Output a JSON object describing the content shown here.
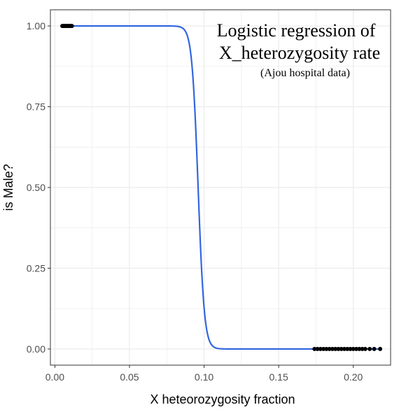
{
  "chart_data": {
    "type": "scatter",
    "title_line1": "Logistic regression of",
    "title_line2": "X_heterozygosity rate",
    "subtitle": "(Ajou hospital data)",
    "xlabel": "X heteorozygosity fraction",
    "ylabel": "is Male?",
    "xlim": [
      -0.003,
      0.225
    ],
    "ylim": [
      -0.05,
      1.05
    ],
    "x_ticks": [
      0.0,
      0.05,
      0.1,
      0.15,
      0.2
    ],
    "x_tick_labels": [
      "0.00",
      "0.05",
      "0.10",
      "0.15",
      "0.20"
    ],
    "y_ticks": [
      0.0,
      0.25,
      0.5,
      0.75,
      1.0
    ],
    "y_tick_labels": [
      "0.00",
      "0.25",
      "0.50",
      "0.75",
      "1.00"
    ],
    "grid": true,
    "panel_border": true,
    "logistic_curve": {
      "midpoint": 0.096,
      "slope": 480,
      "x_range": [
        0.005,
        0.218
      ],
      "color": "#3366e0"
    },
    "points": {
      "color": "#000000",
      "male_y": 1,
      "male_x": [
        0.005,
        0.0058,
        0.0065,
        0.0072,
        0.0079,
        0.0086,
        0.0093,
        0.01,
        0.0108,
        0.0114
      ],
      "female_y": 0,
      "female_x": [
        0.174,
        0.176,
        0.178,
        0.18,
        0.182,
        0.184,
        0.186,
        0.188,
        0.19,
        0.192,
        0.194,
        0.196,
        0.198,
        0.2,
        0.202,
        0.204,
        0.206,
        0.208,
        0.211,
        0.214,
        0.218
      ]
    },
    "colors": {
      "grid": "#ebebeb",
      "border": "#333333",
      "curve": "#3366e0",
      "points": "#000000"
    }
  }
}
